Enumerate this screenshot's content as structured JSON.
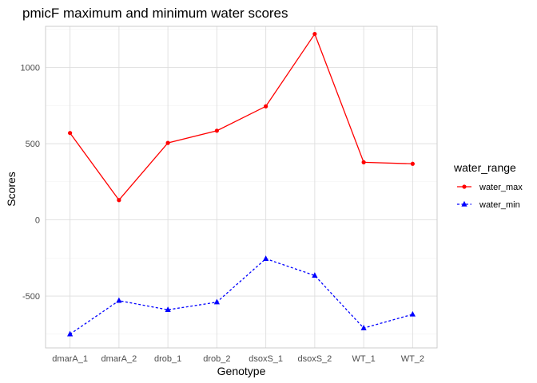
{
  "chart_data": {
    "type": "line",
    "title": "pmicF maximum and minimum water scores",
    "xlabel": "Genotype",
    "ylabel": "Scores",
    "categories": [
      "dmarA_1",
      "dmarA_2",
      "drob_1",
      "drob_2",
      "dsoxS_1",
      "dsoxS_2",
      "WT_1",
      "WT_2"
    ],
    "ylim": [
      -840,
      1270
    ],
    "yticks": [
      -500,
      0,
      500,
      1000
    ],
    "ytick_labels": [
      "-500",
      "0",
      "500",
      "1000"
    ],
    "grid": true,
    "legend": {
      "title": "water_range",
      "position": "right"
    },
    "series": [
      {
        "name": "water_max",
        "color": "#ff0000",
        "line_style": "solid",
        "marker": "circle",
        "values": [
          570,
          130,
          505,
          585,
          745,
          1220,
          378,
          368
        ]
      },
      {
        "name": "water_min",
        "color": "#0000ff",
        "line_style": "dashed",
        "marker": "triangle",
        "values": [
          -750,
          -530,
          -590,
          -540,
          -255,
          -365,
          -710,
          -620
        ]
      }
    ]
  }
}
